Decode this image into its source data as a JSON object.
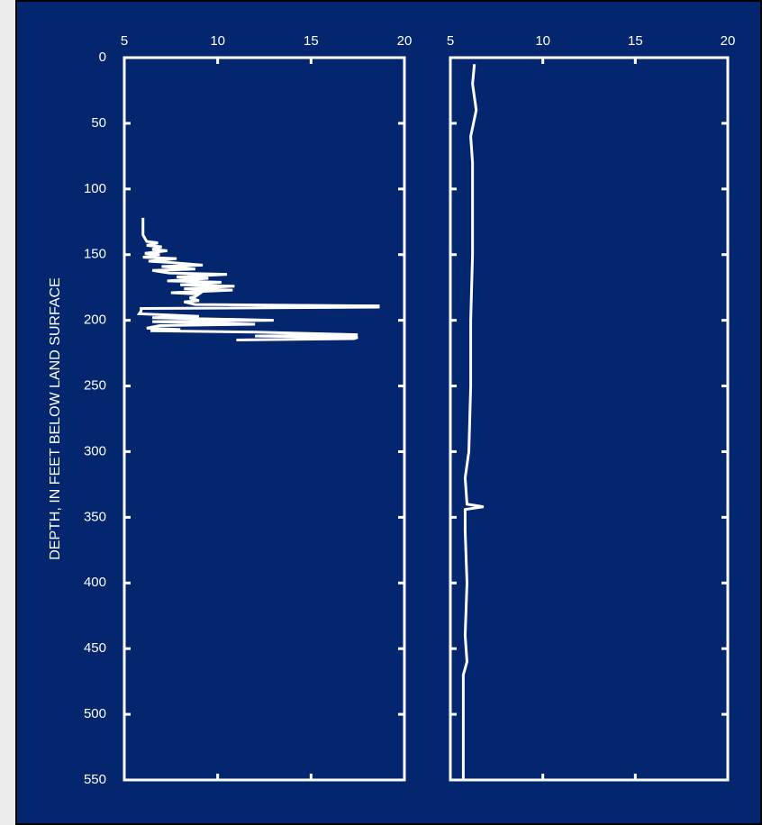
{
  "chart_data": [
    {
      "type": "line",
      "ylabel": "DEPTH, IN FEET BELOW LAND SURFACE",
      "color": "#ffffff",
      "xlim": [
        5,
        20
      ],
      "xticks": [
        5,
        10,
        15,
        20
      ],
      "ylim": [
        0,
        550
      ],
      "yticks": [
        0,
        50,
        100,
        150,
        200,
        250,
        300,
        350,
        400,
        450,
        500,
        550
      ],
      "show_ytick_labels": true,
      "depth": [
        122,
        125,
        130,
        135,
        140,
        141,
        143,
        144,
        146,
        147,
        149,
        150,
        152,
        153,
        155,
        156,
        158,
        159,
        161,
        162,
        164,
        165,
        167,
        168,
        170,
        171,
        173,
        174,
        176,
        177,
        179,
        180,
        182,
        183,
        185,
        186,
        188,
        189,
        190,
        191,
        193,
        195,
        197,
        198,
        200,
        201,
        203,
        204,
        206,
        207,
        208,
        209,
        211,
        212,
        213,
        214,
        215
      ],
      "values": [
        6.0,
        6.0,
        6.0,
        6.0,
        6.2,
        6.8,
        6.2,
        7.0,
        6.5,
        7.3,
        6.1,
        6.9,
        6.0,
        7.8,
        6.3,
        7.5,
        9.2,
        7.0,
        8.8,
        6.5,
        7.4,
        10.5,
        7.8,
        9.5,
        7.3,
        10.2,
        8.0,
        10.9,
        8.2,
        10.8,
        7.5,
        9.0,
        8.8,
        8.5,
        9.0,
        8.2,
        8.8,
        18.6,
        18.6,
        5.9,
        5.9,
        5.8,
        9.0,
        6.5,
        13.0,
        6.5,
        12.0,
        6.9,
        6.2,
        8.0,
        6.4,
        12.0,
        17.5,
        12.0,
        17.5,
        17.3,
        11.0
      ]
    },
    {
      "type": "line",
      "color": "#ffffff",
      "xlim": [
        5,
        20
      ],
      "xticks": [
        5,
        10,
        15,
        20
      ],
      "ylim": [
        0,
        550
      ],
      "yticks": [
        0,
        50,
        100,
        150,
        200,
        250,
        300,
        350,
        400,
        450,
        500,
        550
      ],
      "show_ytick_labels": false,
      "depth": [
        5,
        20,
        40,
        60,
        80,
        100,
        150,
        200,
        250,
        300,
        320,
        340,
        342,
        344,
        360,
        400,
        440,
        460,
        470,
        550
      ],
      "values": [
        6.3,
        6.2,
        6.4,
        6.1,
        6.2,
        6.2,
        6.2,
        6.1,
        6.1,
        6.0,
        5.8,
        5.9,
        6.8,
        5.8,
        5.8,
        5.9,
        5.8,
        5.9,
        5.7,
        5.7
      ]
    }
  ]
}
